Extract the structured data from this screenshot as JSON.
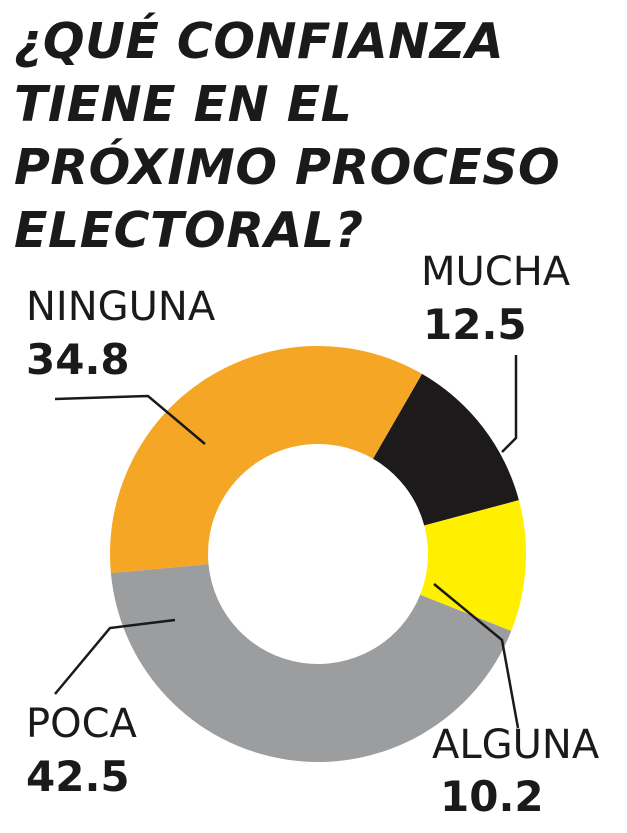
{
  "chart_data": {
    "type": "donut",
    "title_lines": [
      "¿QUÉ CONFIANZA",
      "TIENE EN EL",
      "PRÓXIMO PROCESO",
      "ELECTORAL?"
    ],
    "slices": [
      {
        "label": "MUCHA",
        "value": 12.5,
        "display": "12.5",
        "color": "#1c1a1b"
      },
      {
        "label": "ALGUNA",
        "value": 10.2,
        "display": "10.2",
        "color": "#fff000"
      },
      {
        "label": "POCA",
        "value": 42.5,
        "display": "42.5",
        "color": "#9c9d9f"
      },
      {
        "label": "NINGUNA",
        "value": 34.8,
        "display": "34.8",
        "color": "#f5a624"
      }
    ]
  }
}
